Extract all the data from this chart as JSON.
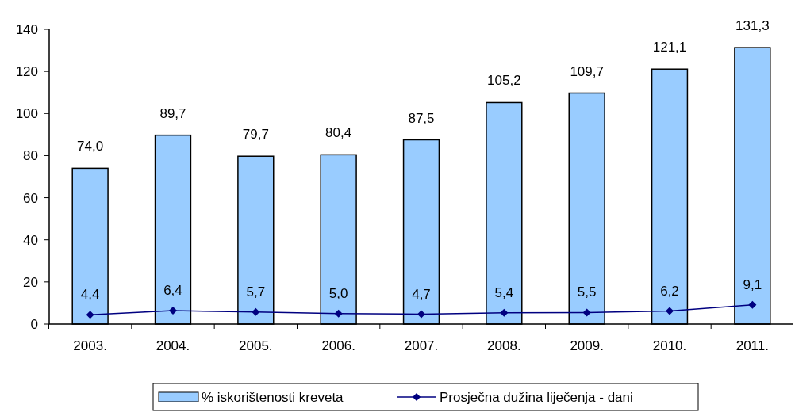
{
  "chart_data": {
    "type": "bar",
    "categories": [
      "2003.",
      "2004.",
      "2005.",
      "2006.",
      "2007.",
      "2008.",
      "2009.",
      "2010.",
      "2011."
    ],
    "series": [
      {
        "name": "% iskorištenosti kreveta",
        "color": "#99ccff",
        "values": [
          74.0,
          89.7,
          79.7,
          80.4,
          87.5,
          105.2,
          109.7,
          121.1,
          131.3
        ],
        "value_labels": [
          "74,0",
          "89,7",
          "79,7",
          "80,4",
          "87,5",
          "105,2",
          "109,7",
          "121,1",
          "131,3"
        ]
      },
      {
        "name": "Prosječna dužina liječenja - dani",
        "type": "line",
        "color": "#000080",
        "values": [
          4.4,
          6.4,
          5.7,
          5.0,
          4.7,
          5.4,
          5.5,
          6.2,
          9.1
        ],
        "value_labels": [
          "4,4",
          "6,4",
          "5,7",
          "5,0",
          "4,7",
          "5,4",
          "5,5",
          "6,2",
          "9,1"
        ]
      }
    ],
    "ylim": [
      0,
      140
    ],
    "yticks": [
      0,
      20,
      40,
      60,
      80,
      100,
      120,
      140
    ],
    "grid": false,
    "legend": "bottom",
    "marker": "diamond",
    "line_style": "solid"
  }
}
